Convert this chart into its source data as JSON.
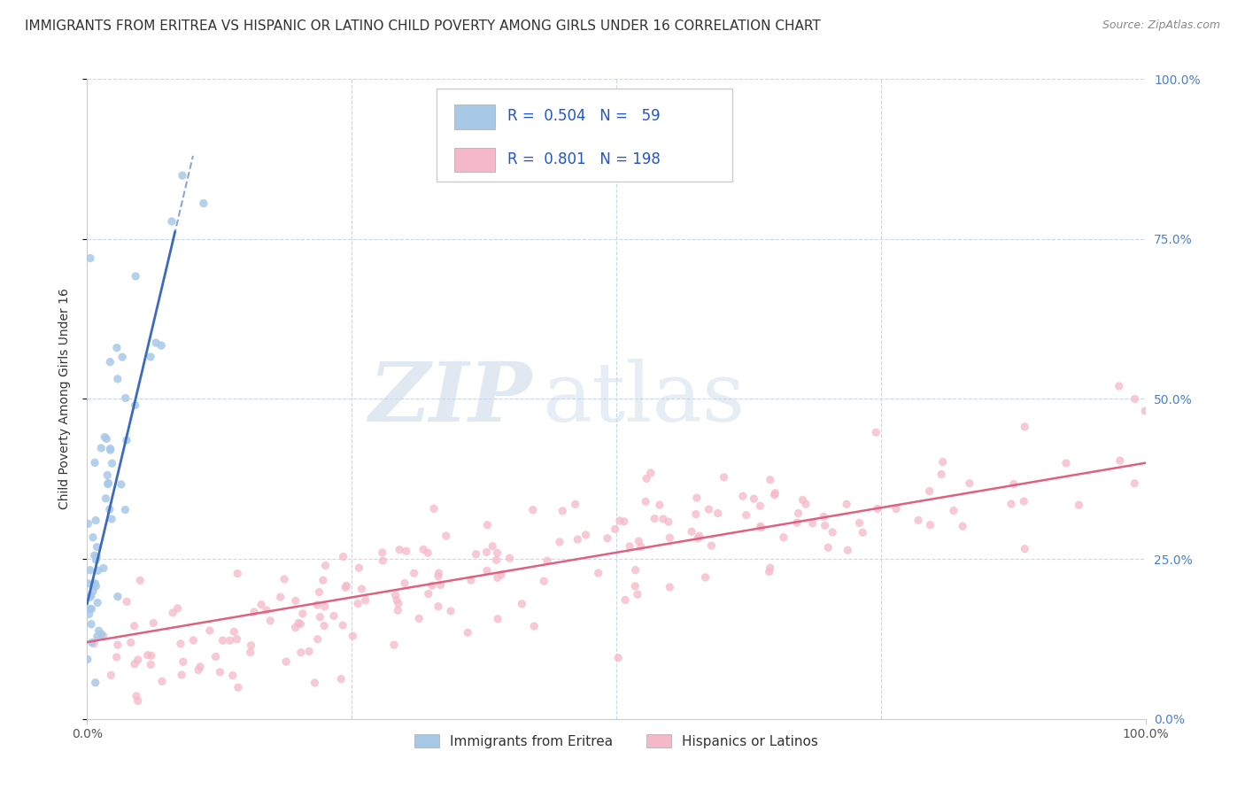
{
  "title": "IMMIGRANTS FROM ERITREA VS HISPANIC OR LATINO CHILD POVERTY AMONG GIRLS UNDER 16 CORRELATION CHART",
  "source": "Source: ZipAtlas.com",
  "ylabel": "Child Poverty Among Girls Under 16",
  "legend_eritrea_R": 0.504,
  "legend_eritrea_N": 59,
  "legend_hispanic_R": 0.801,
  "legend_hispanic_N": 198,
  "eritrea_scatter_color": "#a8c8e8",
  "eritrea_line_color": "#3a6bbf",
  "hispanic_scatter_color": "#f5b8c8",
  "hispanic_line_color": "#e06080",
  "watermark_color": "#dde8f0",
  "grid_color": "#c8d8e8",
  "title_color": "#333333",
  "source_color": "#888888",
  "right_tick_color": "#4a80d0",
  "bottom_tick_color": "#555555",
  "legend_text_color": "#2255cc",
  "background_color": "#ffffff",
  "title_fontsize": 11,
  "axis_label_fontsize": 10,
  "tick_fontsize": 10,
  "legend_fontsize": 12
}
